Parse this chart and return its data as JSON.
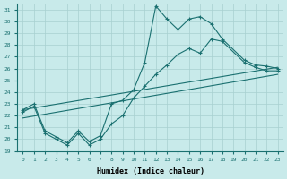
{
  "xlabel": "Humidex (Indice chaleur)",
  "ylabel": "",
  "xlim": [
    -0.5,
    23.5
  ],
  "ylim": [
    19,
    31.5
  ],
  "yticks": [
    19,
    20,
    21,
    22,
    23,
    24,
    25,
    26,
    27,
    28,
    29,
    30,
    31
  ],
  "xticks": [
    0,
    1,
    2,
    3,
    4,
    5,
    6,
    7,
    8,
    9,
    10,
    11,
    12,
    13,
    14,
    15,
    16,
    17,
    18,
    19,
    20,
    21,
    22,
    23
  ],
  "bg_color": "#c8eaea",
  "grid_color": "#a8d0d0",
  "line_color": "#1a7070",
  "line1_x": [
    0,
    1,
    2,
    3,
    4,
    5,
    6,
    7,
    8,
    9,
    10,
    11,
    12,
    13,
    14,
    15,
    16,
    17,
    18,
    20,
    21,
    22,
    23
  ],
  "line1_y": [
    22.5,
    23.0,
    20.7,
    20.2,
    19.7,
    20.7,
    19.8,
    20.3,
    23.0,
    23.3,
    24.2,
    26.5,
    31.3,
    30.2,
    29.3,
    30.2,
    30.4,
    29.8,
    28.5,
    26.7,
    26.3,
    26.2,
    26.0
  ],
  "line2_x": [
    0,
    1,
    2,
    3,
    4,
    5,
    6,
    7,
    8,
    9,
    10,
    11,
    12,
    13,
    14,
    15,
    16,
    17,
    18,
    20,
    21,
    22,
    23
  ],
  "line2_y": [
    22.3,
    22.8,
    20.5,
    20.0,
    19.5,
    20.5,
    19.5,
    20.0,
    21.3,
    22.0,
    23.5,
    24.5,
    25.5,
    26.3,
    27.2,
    27.7,
    27.3,
    28.5,
    28.3,
    26.5,
    26.1,
    25.8,
    25.8
  ],
  "line3_x": [
    0,
    23
  ],
  "line3_y": [
    22.5,
    26.1
  ],
  "line4_x": [
    0,
    23
  ],
  "line4_y": [
    21.8,
    25.5
  ]
}
